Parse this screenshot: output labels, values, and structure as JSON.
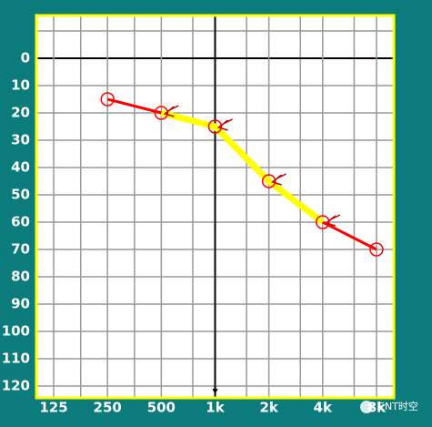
{
  "chart_data": {
    "type": "line",
    "x": [
      250,
      500,
      1000,
      2000,
      4000,
      8000
    ],
    "series": [
      {
        "color": "#ff0000",
        "marker": "circle",
        "values": [
          15,
          20,
          25,
          45,
          60,
          70
        ]
      },
      {
        "color": "#ffff00",
        "marker": "bracket",
        "values": [
          null,
          20,
          25,
          45,
          60,
          null
        ]
      }
    ],
    "xlim": [
      100,
      10000
    ],
    "xscale": "log",
    "xticks": [
      125,
      250,
      500,
      {
        "value": 1000,
        "label": "1k"
      },
      {
        "value": 2000,
        "label": "2k"
      },
      {
        "value": 4000,
        "label": "4k"
      },
      {
        "value": 8000,
        "label": "8k"
      }
    ],
    "x_minor_grid": [
      177,
      354,
      750,
      1500,
      3000,
      6000
    ],
    "ylim": [
      -15,
      125
    ],
    "y_inverted": true,
    "yticks": [
      0,
      10,
      20,
      30,
      40,
      50,
      60,
      70,
      80,
      90,
      100,
      110,
      120
    ],
    "y_minor_grid": [
      -10
    ],
    "grid": true,
    "watermark": "ENT时空"
  }
}
